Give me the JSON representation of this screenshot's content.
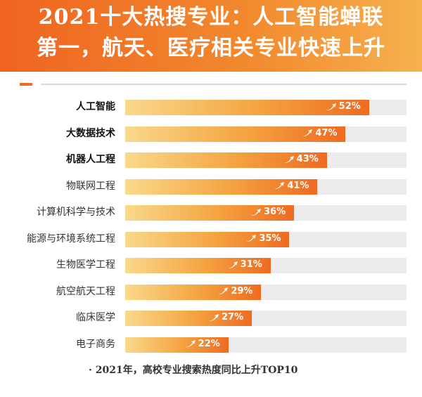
{
  "header": {
    "title_line1": "2021十大热搜专业：人工智能蝉联",
    "title_line2": "第一，航天、医疗相关专业快速上升"
  },
  "colors": {
    "header_start": "#ef6420",
    "header_end": "#f6b14f",
    "bar_start": "#f9d98b",
    "bar_end": "#ef6a22",
    "track": "#ececec"
  },
  "chart_data": {
    "type": "bar",
    "orientation": "horizontal",
    "categories": [
      "人工智能",
      "大数据技术",
      "机器人工程",
      "物联网工程",
      "计算机科学与技术",
      "能源与环境系统工程",
      "生物医学工程",
      "航空航天工程",
      "临床医学",
      "电子商务"
    ],
    "values": [
      52,
      47,
      43,
      41,
      36,
      35,
      31,
      29,
      27,
      22
    ],
    "value_labels": [
      "52%",
      "47%",
      "43%",
      "41%",
      "36%",
      "35%",
      "31%",
      "29%",
      "27%",
      "22%"
    ],
    "bold_categories": [
      "人工智能",
      "大数据技术",
      "机器人工程"
    ],
    "xlim": [
      0,
      60
    ],
    "unit": "%",
    "grid": false
  },
  "footnote": "· 2021年，高校专业搜索热度同比上升TOP10"
}
